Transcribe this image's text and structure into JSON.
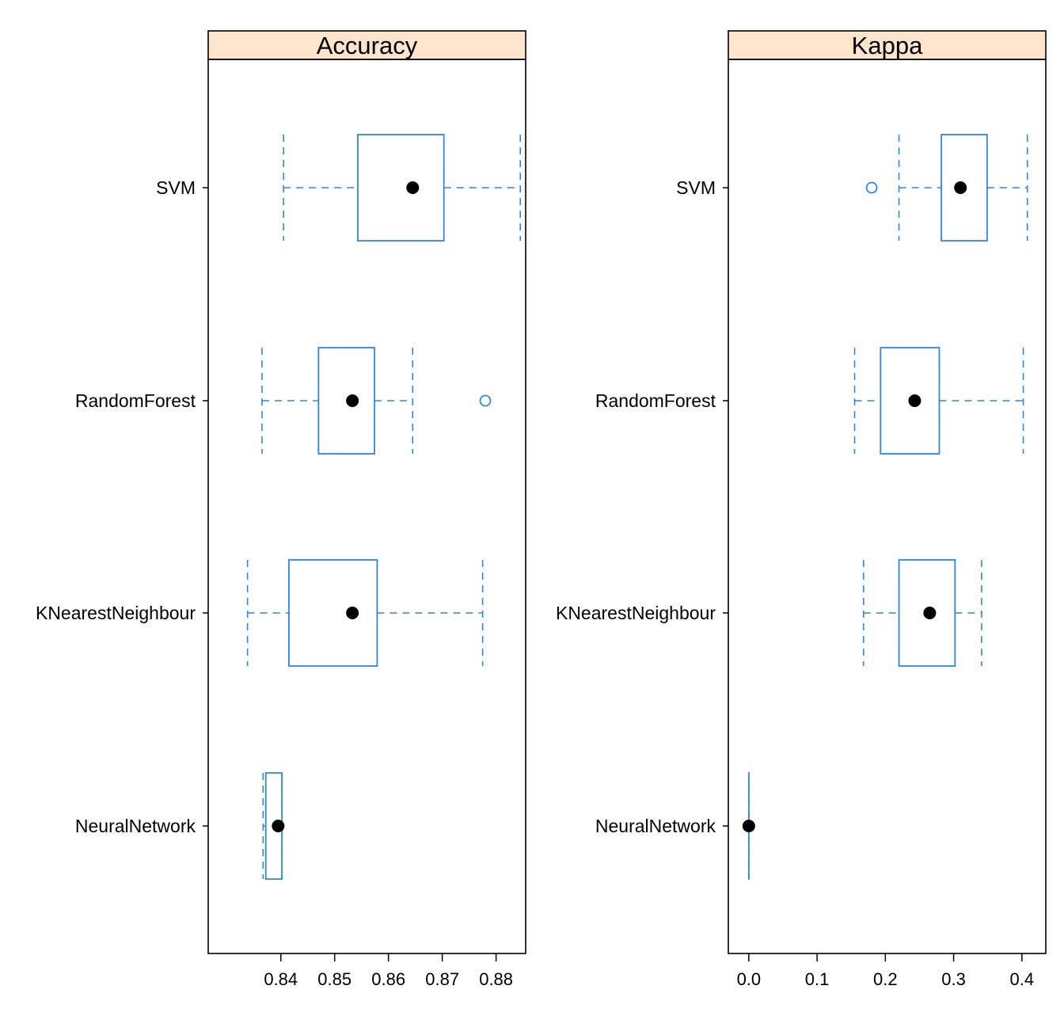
{
  "colors": {
    "box": "#2E86E6",
    "median": "#000000",
    "strip": "#FFE5CC",
    "frame": "#000000"
  },
  "chart_data": {
    "type": "boxplot",
    "categories": [
      "SVM",
      "RandomForest",
      "KNearestNeighbour",
      "NeuralNetwork"
    ],
    "panels": [
      {
        "title": "Accuracy",
        "xlim": [
          0.8265,
          0.8855
        ],
        "ticks": [
          0.84,
          0.85,
          0.86,
          0.87,
          0.88
        ],
        "tick_labels": [
          "0.84",
          "0.85",
          "0.86",
          "0.87",
          "0.88"
        ],
        "boxes": [
          {
            "category": "SVM",
            "whisker_low": 0.8405,
            "q1": 0.8543,
            "median": 0.8645,
            "q3": 0.8703,
            "whisker_high": 0.8845,
            "outliers": []
          },
          {
            "category": "RandomForest",
            "whisker_low": 0.8365,
            "q1": 0.847,
            "median": 0.8533,
            "q3": 0.8574,
            "whisker_high": 0.8645,
            "outliers": [
              0.878
            ]
          },
          {
            "category": "KNearestNeighbour",
            "whisker_low": 0.8338,
            "q1": 0.8415,
            "median": 0.8533,
            "q3": 0.8579,
            "whisker_high": 0.8775,
            "outliers": []
          },
          {
            "category": "NeuralNetwork",
            "whisker_low": 0.8367,
            "q1": 0.8372,
            "median": 0.8395,
            "q3": 0.8402,
            "whisker_high": 0.8402,
            "outliers": []
          }
        ]
      },
      {
        "title": "Kappa",
        "xlim": [
          -0.03,
          0.435
        ],
        "ticks": [
          0.0,
          0.1,
          0.2,
          0.3,
          0.4
        ],
        "tick_labels": [
          "0.0",
          "0.1",
          "0.2",
          "0.3",
          "0.4"
        ],
        "boxes": [
          {
            "category": "SVM",
            "whisker_low": 0.22,
            "q1": 0.282,
            "median": 0.31,
            "q3": 0.349,
            "whisker_high": 0.408,
            "outliers": [
              0.18
            ]
          },
          {
            "category": "RandomForest",
            "whisker_low": 0.155,
            "q1": 0.193,
            "median": 0.243,
            "q3": 0.279,
            "whisker_high": 0.402,
            "outliers": []
          },
          {
            "category": "KNearestNeighbour",
            "whisker_low": 0.168,
            "q1": 0.22,
            "median": 0.265,
            "q3": 0.302,
            "whisker_high": 0.341,
            "outliers": []
          },
          {
            "category": "NeuralNetwork",
            "whisker_low": 0.0,
            "q1": 0.0,
            "median": 0.0,
            "q3": 0.0,
            "whisker_high": 0.0,
            "outliers": []
          }
        ]
      }
    ]
  }
}
